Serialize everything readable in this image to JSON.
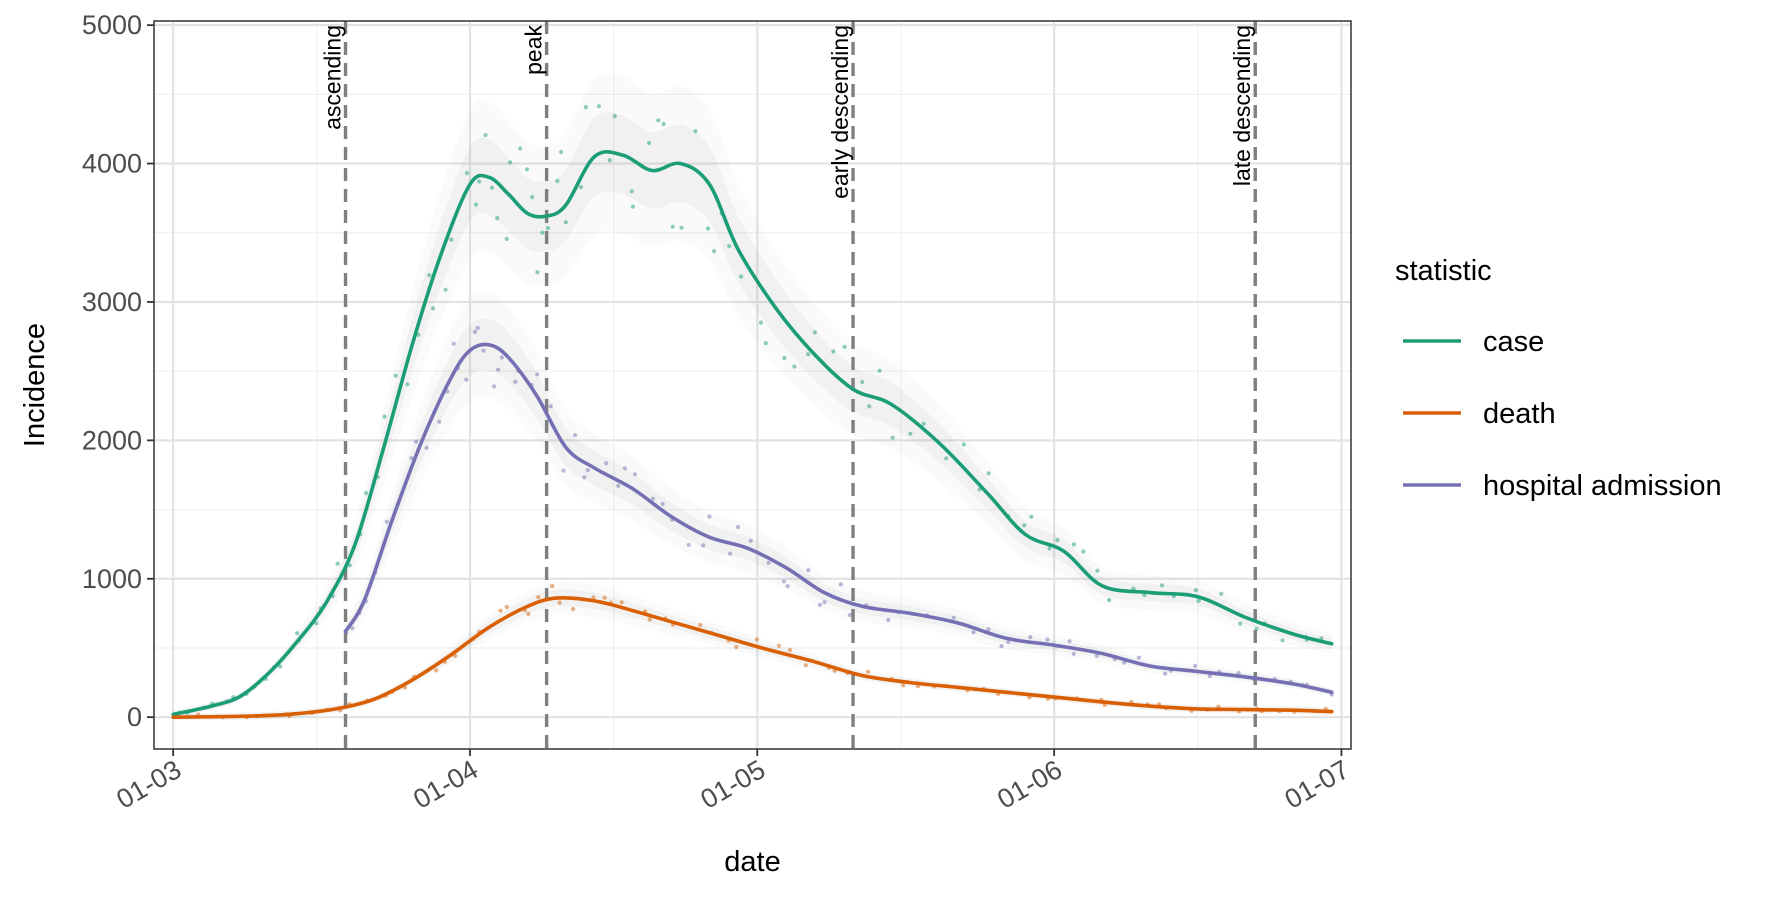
{
  "chart_data": {
    "type": "line",
    "title": "",
    "xlabel": "date",
    "ylabel": "Incidence",
    "x_ticks": [
      "01-03",
      "01-04",
      "01-05",
      "01-06",
      "01-07"
    ],
    "y_ticks": [
      "0",
      "1000",
      "2000",
      "3000",
      "4000",
      "5000"
    ],
    "xlim": [
      "2020-02-28",
      "2020-07-02"
    ],
    "ylim": [
      -230,
      5030
    ],
    "grid": true,
    "legend": {
      "title": "statistic",
      "position": "right"
    },
    "phases": [
      {
        "label": "ascending",
        "date": "2020-03-19"
      },
      {
        "label": "peak",
        "date": "2020-04-09"
      },
      {
        "label": "early descending",
        "date": "2020-05-11"
      },
      {
        "label": "late descending",
        "date": "2020-06-22"
      }
    ],
    "series": [
      {
        "name": "case",
        "color": "#1b9e77",
        "x": [
          "2020-03-01",
          "2020-03-05",
          "2020-03-08",
          "2020-03-11",
          "2020-03-14",
          "2020-03-17",
          "2020-03-20",
          "2020-03-23",
          "2020-03-26",
          "2020-03-29",
          "2020-04-01",
          "2020-04_03",
          "2020-04-05",
          "2020-04-07",
          "2020-04-09",
          "2020-04-11",
          "2020-04-14",
          "2020-04-17",
          "2020-04-20",
          "2020-04-23",
          "2020-04-26",
          "2020-04-29",
          "2020-05-03",
          "2020-05-07",
          "2020-05-11",
          "2020-05-15",
          "2020-05-20",
          "2020-05-25",
          "2020-05-29",
          "2020-06-02",
          "2020-06-06",
          "2020-06-11",
          "2020-06-16",
          "2020-06-21",
          "2020-06-26",
          "2020-06-30"
        ],
        "y": [
          20,
          80,
          150,
          320,
          550,
          830,
          1250,
          1950,
          2700,
          3350,
          3850,
          3900,
          3780,
          3640,
          3620,
          3700,
          4050,
          4060,
          3950,
          4000,
          3850,
          3380,
          2950,
          2620,
          2370,
          2260,
          1980,
          1620,
          1320,
          1200,
          950,
          900,
          870,
          720,
          600,
          530
        ]
      },
      {
        "name": "death",
        "color": "#d95f02",
        "x": [
          "2020-03-01",
          "2020-03-07",
          "2020-03-13",
          "2020-03-18",
          "2020-03-22",
          "2020-03-26",
          "2020-03-30",
          "2020-04-03",
          "2020-04-07",
          "2020-04-10",
          "2020-04-14",
          "2020-04-18",
          "2020-04-22",
          "2020-04-27",
          "2020-05-02",
          "2020-05-07",
          "2020-05-12",
          "2020-05-17",
          "2020-05-22",
          "2020-05-27",
          "2020-06-01",
          "2020-06-06",
          "2020-06-11",
          "2020-06-16",
          "2020-06-21",
          "2020-06-26",
          "2020-06-30"
        ],
        "y": [
          0,
          5,
          20,
          60,
          130,
          270,
          450,
          650,
          800,
          860,
          840,
          770,
          690,
          590,
          490,
          400,
          300,
          250,
          215,
          180,
          145,
          110,
          80,
          60,
          55,
          50,
          40
        ]
      },
      {
        "name": "hospital admission",
        "color": "#7570b3",
        "x": [
          "2020-03-19",
          "2020-03-21",
          "2020-03-24",
          "2020-03-27",
          "2020-03-30",
          "2020-04-01",
          "2020-04-03",
          "2020-04-05",
          "2020-04-08",
          "2020-04-11",
          "2020-04-14",
          "2020-04-18",
          "2020-04-22",
          "2020-04-26",
          "2020-04-30",
          "2020-05-04",
          "2020-05-08",
          "2020-05-12",
          "2020-05-17",
          "2020-05-22",
          "2020-05-27",
          "2020-06-01",
          "2020-06-06",
          "2020-06-11",
          "2020-06-16",
          "2020-06-21",
          "2020-06-26",
          "2020-06-30"
        ],
        "y": [
          620,
          850,
          1450,
          2000,
          2450,
          2650,
          2690,
          2600,
          2320,
          1950,
          1800,
          1650,
          1450,
          1300,
          1220,
          1080,
          900,
          800,
          750,
          680,
          570,
          520,
          460,
          370,
          330,
          290,
          240,
          180
        ]
      }
    ]
  }
}
